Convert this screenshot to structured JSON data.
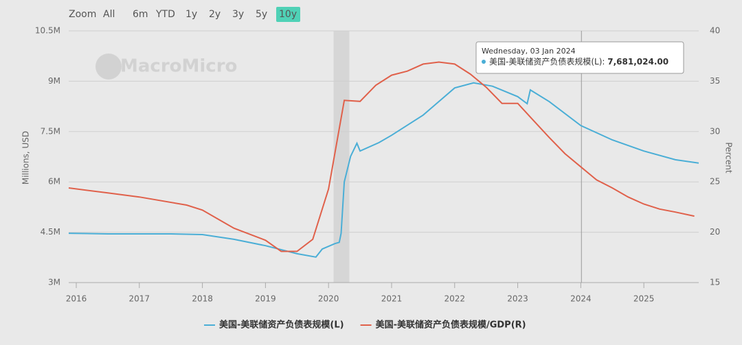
{
  "toolbar": {
    "label": "Zoom",
    "buttons": [
      "All",
      "6m",
      "YTD",
      "1y",
      "2y",
      "3y",
      "5y",
      "10y"
    ],
    "active": 7
  },
  "watermark": "MacroMicro",
  "chart_data": {
    "type": "line",
    "xlim": [
      2015.88,
      2025.87
    ],
    "xticks": [
      2016,
      2017,
      2018,
      2019,
      2020,
      2021,
      2022,
      2023,
      2024,
      2025
    ],
    "ylim": [
      3000000,
      10500000
    ],
    "yticks": [
      {
        "value": 3000000,
        "label": "3M"
      },
      {
        "value": 4500000,
        "label": "4.5M"
      },
      {
        "value": 6000000,
        "label": "6M"
      },
      {
        "value": 7500000,
        "label": "7.5M"
      },
      {
        "value": 9000000,
        "label": "9M"
      },
      {
        "value": 10500000,
        "label": "10.5M"
      }
    ],
    "y2lim": [
      15,
      40
    ],
    "y2ticks": [
      15,
      20,
      25,
      30,
      35,
      40
    ],
    "ylabel": "Millions, USD",
    "y2label": "Percent",
    "grid": true,
    "recession": [
      2020.08,
      2020.33
    ],
    "series": [
      {
        "name": "美国-美联储资产负债表规模(L)",
        "color": "#4aaed6",
        "x": [
          2015.88,
          2016.5,
          2017.0,
          2017.5,
          2018.0,
          2018.5,
          2019.0,
          2019.5,
          2019.8,
          2019.9,
          2020.1,
          2020.17,
          2020.2,
          2020.25,
          2020.35,
          2020.45,
          2020.5,
          2020.8,
          2021.0,
          2021.5,
          2022.0,
          2022.3,
          2022.6,
          2023.0,
          2023.15,
          2023.2,
          2023.5,
          2024.0,
          2024.5,
          2025.0,
          2025.5,
          2025.87
        ],
        "values": [
          4470000,
          4450000,
          4450000,
          4450000,
          4430000,
          4290000,
          4100000,
          3860000,
          3760000,
          4000000,
          4160000,
          4200000,
          4470000,
          6000000,
          6760000,
          7150000,
          6920000,
          7170000,
          7390000,
          7990000,
          8800000,
          8950000,
          8850000,
          8540000,
          8330000,
          8740000,
          8390000,
          7680000,
          7250000,
          6920000,
          6660000,
          6560000
        ]
      },
      {
        "name": "美国-美联储资产负债表规模/GDP(R)",
        "color": "#e0604a",
        "axis": "y2",
        "x": [
          2015.88,
          2016.5,
          2017.0,
          2017.75,
          2018.0,
          2018.25,
          2018.5,
          2019.0,
          2019.25,
          2019.5,
          2019.75,
          2020.0,
          2020.25,
          2020.5,
          2020.75,
          2021.0,
          2021.25,
          2021.5,
          2021.75,
          2022.0,
          2022.25,
          2022.5,
          2022.75,
          2023.0,
          2023.25,
          2023.5,
          2023.75,
          2024.0,
          2024.25,
          2024.5,
          2024.75,
          2025.0,
          2025.25,
          2025.5,
          2025.8
        ],
        "values": [
          24.4,
          23.9,
          23.5,
          22.7,
          22.2,
          21.3,
          20.4,
          19.2,
          18.1,
          18.1,
          19.3,
          24.3,
          33.1,
          33.0,
          34.6,
          35.6,
          36.0,
          36.7,
          36.9,
          36.7,
          35.7,
          34.4,
          32.8,
          32.8,
          31.1,
          29.4,
          27.8,
          26.5,
          25.2,
          24.4,
          23.5,
          22.8,
          22.3,
          22.0,
          21.6
        ]
      }
    ],
    "tooltip": {
      "x": 2024.01,
      "date": "Wednesday, 03 Jan 2024",
      "label": "美国-美联储资产负债表规模(L): ",
      "value": "7,681,024.00"
    }
  }
}
